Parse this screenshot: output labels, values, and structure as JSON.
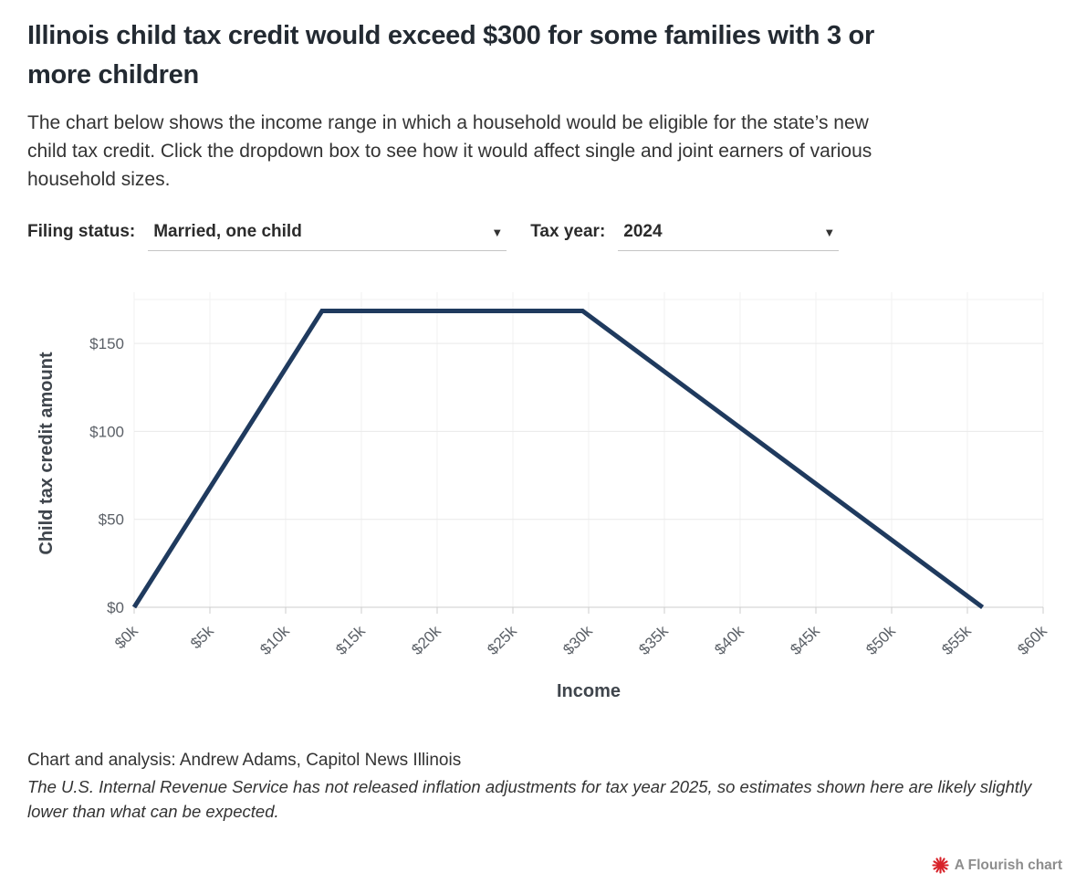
{
  "header": {
    "title": "Illinois child tax credit would exceed $300 for some families with 3 or\nmore children",
    "subtitle": "The chart below shows the income range in which a household would be eligible for the state’s new\nchild tax credit. Click the dropdown box to see how it would affect single and joint earners of various\nhousehold sizes."
  },
  "controls": {
    "filing_status_label": "Filing status:",
    "filing_status_value": "Married, one child",
    "tax_year_label": "Tax year:",
    "tax_year_value": "2024",
    "caret": "▼"
  },
  "chart_data": {
    "type": "line",
    "xlabel": "Income",
    "ylabel": "Child tax credit amount",
    "x_units_note": "x values in thousands of dollars",
    "x": [
      0,
      12.4,
      29.6,
      56
    ],
    "y": [
      0,
      168.5,
      168.5,
      0
    ],
    "xlim": [
      0,
      60
    ],
    "ylim": [
      0,
      175
    ],
    "x_ticks": [
      0,
      5,
      10,
      15,
      20,
      25,
      30,
      35,
      40,
      45,
      50,
      55,
      60
    ],
    "x_tick_labels": [
      "$0k",
      "$5k",
      "$10k",
      "$15k",
      "$20k",
      "$25k",
      "$30k",
      "$35k",
      "$40k",
      "$45k",
      "$50k",
      "$55k",
      "$60k"
    ],
    "y_ticks": [
      0,
      50,
      100,
      150
    ],
    "y_tick_labels": [
      "$0",
      "$50",
      "$100",
      "$150"
    ],
    "grid": true,
    "legend": "none",
    "line_color": "#1f3a5e",
    "grid_color": "#e9e9e9",
    "minor_grid_color": "#f2f2f2",
    "axis_line_color": "#cccccc",
    "tick_label_color": "#5b6067",
    "axis_title_color": "#3f454c"
  },
  "footer": {
    "credit": "Chart and analysis: Andrew Adams, Capitol News Illinois",
    "note": "The U.S. Internal Revenue Service has not released inflation adjustments for tax year 2025, so estimates shown here are likely slightly\nlower than what can be expected.",
    "flourish_label": "A Flourish chart",
    "flourish_logo_color": "#d8232a"
  }
}
